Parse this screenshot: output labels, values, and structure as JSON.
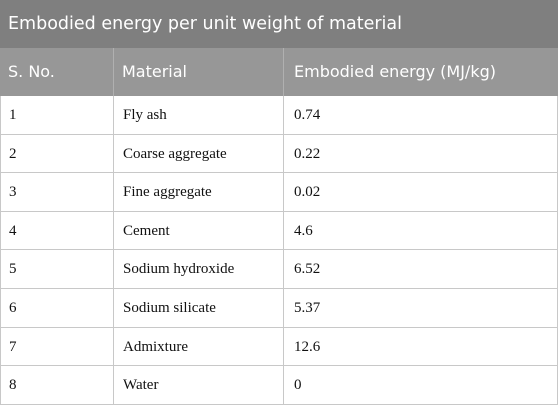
{
  "table": {
    "caption": "Embodied energy per unit weight of material",
    "headers": [
      "S. No.",
      "Material",
      "Embodied energy (MJ/kg)"
    ],
    "rows": [
      [
        "1",
        "Fly ash",
        "0.74"
      ],
      [
        "2",
        "Coarse aggregate",
        "0.22"
      ],
      [
        "3",
        "Fine aggregate",
        "0.02"
      ],
      [
        "4",
        "Cement",
        "4.6"
      ],
      [
        "5",
        "Sodium hydroxide",
        "6.52"
      ],
      [
        "6",
        "Sodium silicate",
        "5.37"
      ],
      [
        "7",
        "Admixture",
        "12.6"
      ],
      [
        "8",
        "Water",
        "0"
      ]
    ]
  }
}
